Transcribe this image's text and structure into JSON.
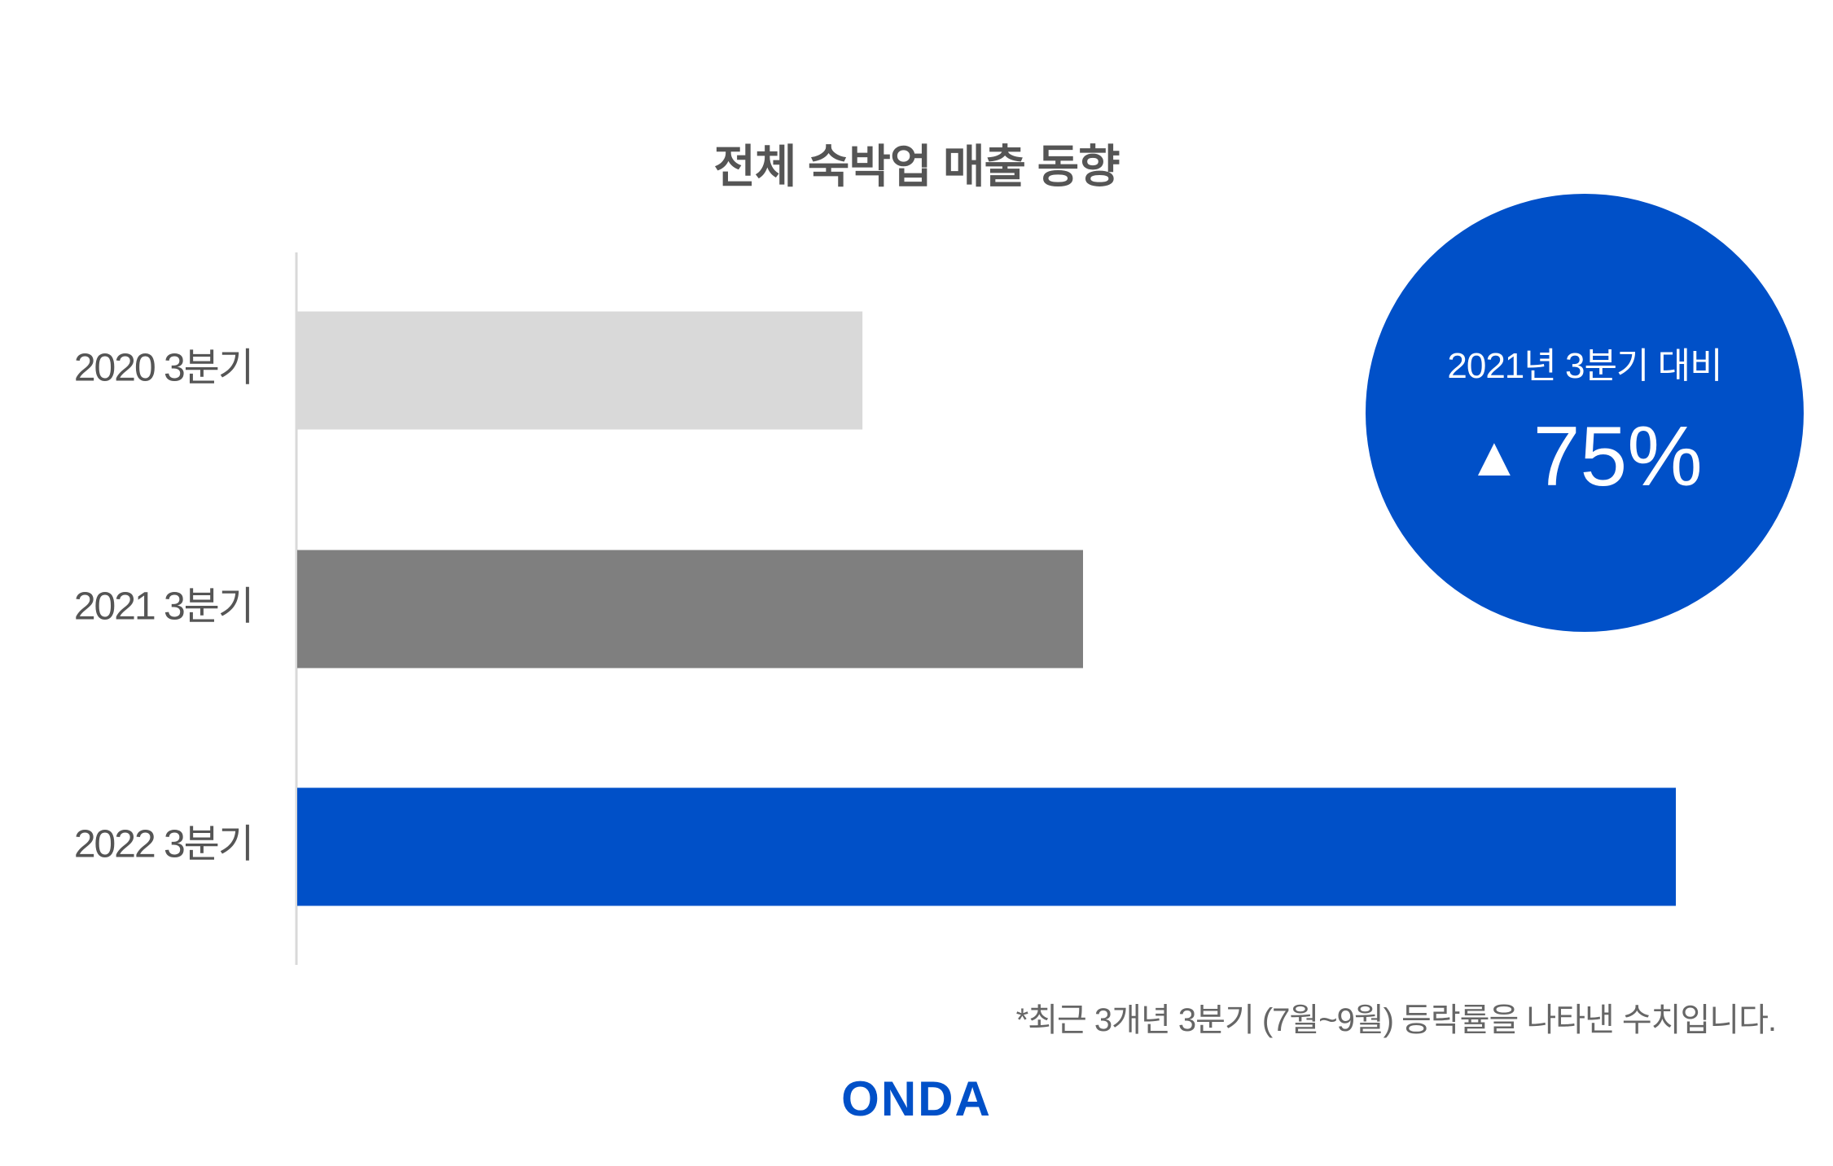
{
  "chart_data": {
    "type": "bar",
    "orientation": "horizontal",
    "title": "전체 숙박업 매출 동향",
    "categories": [
      "2020 3분기",
      "2021 3분기",
      "2022 3분기"
    ],
    "values": [
      41,
      57,
      100
    ],
    "colors": [
      "#d9d9d9",
      "#7f7f7f",
      "#0050c8"
    ],
    "value_axis": "hidden",
    "grid": false
  },
  "callout": {
    "label": "2021년 3분기 대비",
    "arrow_icon": "up-triangle-icon",
    "value": "75%",
    "color": "#0050c8"
  },
  "footnote": "*최근 3개년 3분기 (7월~9월) 등락률을 나타낸 수치입니다.",
  "logo": "ONDA"
}
